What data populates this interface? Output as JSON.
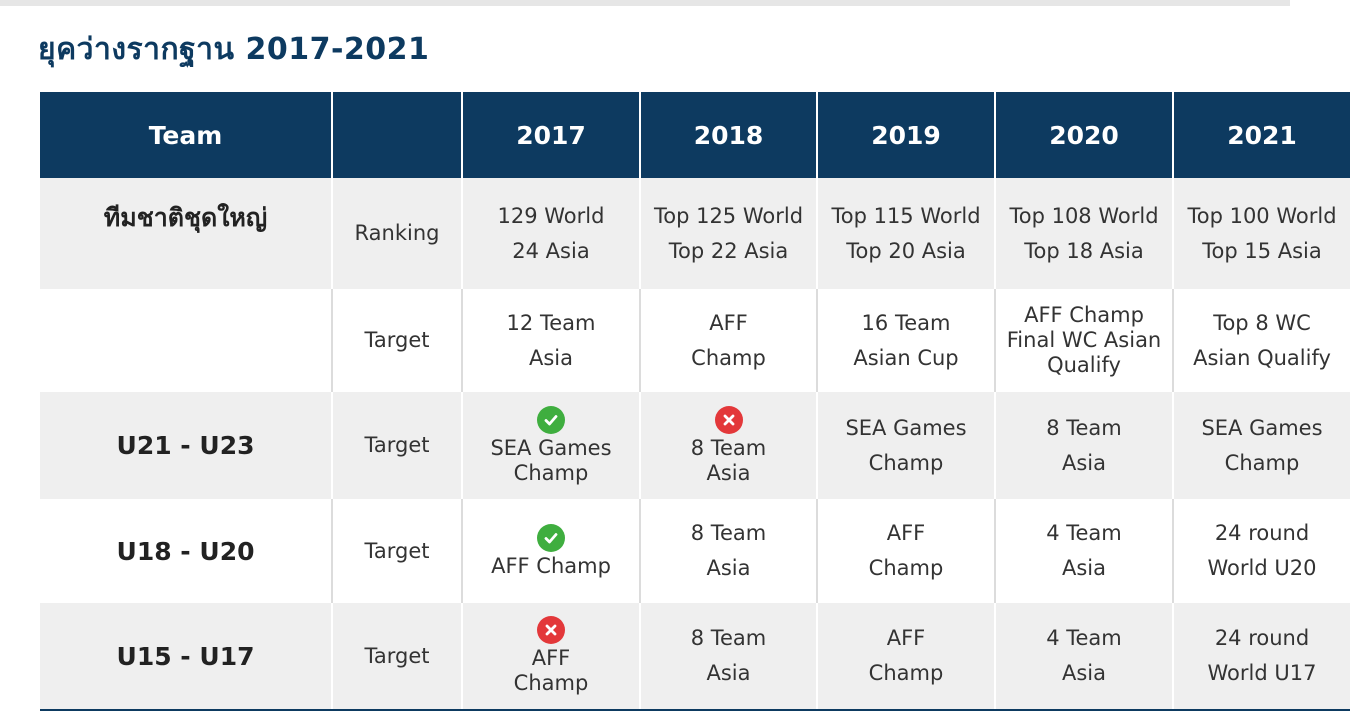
{
  "title": "ยุคว่างรากฐาน 2017-2021",
  "colors": {
    "header_bg": "#0d3a60",
    "row_alt_bg": "#efefef",
    "ok": "#3fae3f",
    "fail": "#e3383a"
  },
  "header": [
    "Team",
    "",
    "2017",
    "2018",
    "2019",
    "2020",
    "2021"
  ],
  "rows": [
    {
      "team": "ทีมชาติชุดใหญ่",
      "metric": "Ranking",
      "cells": [
        {
          "line1": "129 World",
          "line2": "24 Asia"
        },
        {
          "line1": "Top 125 World",
          "line2": "Top 22 Asia"
        },
        {
          "line1": "Top 115 World",
          "line2": "Top 20 Asia"
        },
        {
          "line1": "Top 108 World",
          "line2": "Top 18 Asia"
        },
        {
          "line1": "Top 100 World",
          "line2": "Top 15 Asia"
        }
      ]
    },
    {
      "team": "",
      "metric": "Target",
      "cells": [
        {
          "line1": "12 Team",
          "line2": "Asia"
        },
        {
          "line1": "AFF",
          "line2": "Champ"
        },
        {
          "line1": "16 Team",
          "line2": "Asian Cup"
        },
        {
          "line1": "AFF Champ",
          "line2": "Final WC Asian",
          "line3": "Qualify"
        },
        {
          "line1": "Top 8 WC",
          "line2": "Asian Qualify"
        }
      ]
    },
    {
      "team": "U21 - U23",
      "metric": "Target",
      "cells": [
        {
          "status": "achieved-icon",
          "line1": "SEA Games",
          "line2": "Champ"
        },
        {
          "status": "failed-icon",
          "line1": "8 Team",
          "line2": "Asia"
        },
        {
          "line1": "SEA Games",
          "line2": "Champ"
        },
        {
          "line1": "8 Team",
          "line2": "Asia"
        },
        {
          "line1": "SEA Games",
          "line2": "Champ"
        }
      ]
    },
    {
      "team": "U18 - U20",
      "metric": "Target",
      "cells": [
        {
          "status": "achieved-icon",
          "line1": "AFF Champ"
        },
        {
          "line1": "8 Team",
          "line2": "Asia"
        },
        {
          "line1": "AFF",
          "line2": "Champ"
        },
        {
          "line1": "4 Team",
          "line2": "Asia"
        },
        {
          "line1": "24 round",
          "line2": "World U20"
        }
      ]
    },
    {
      "team": "U15 - U17",
      "metric": "Target",
      "cells": [
        {
          "status": "failed-icon",
          "line1": "AFF",
          "line2": "Champ"
        },
        {
          "line1": "8 Team",
          "line2": "Asia"
        },
        {
          "line1": "AFF",
          "line2": "Champ"
        },
        {
          "line1": "4 Team",
          "line2": "Asia"
        },
        {
          "line1": "24 round",
          "line2": "World U17"
        }
      ]
    }
  ]
}
